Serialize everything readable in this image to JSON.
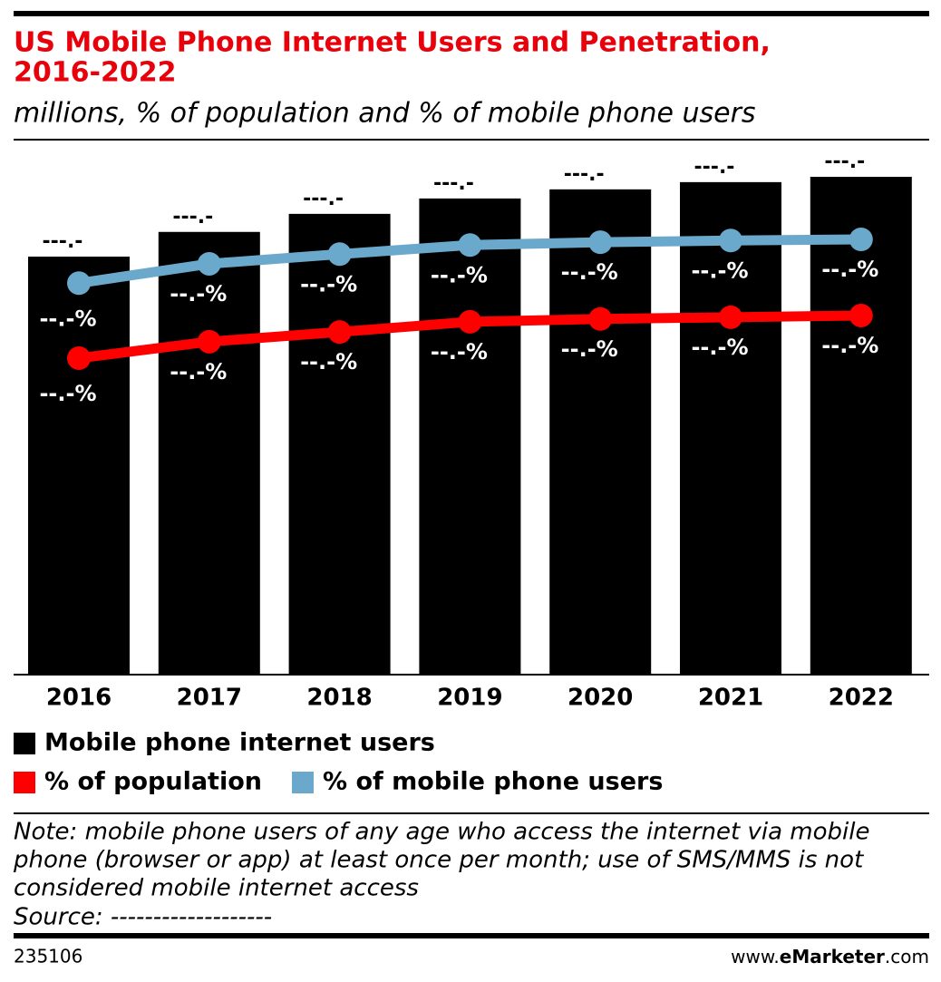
{
  "chart_data": {
    "type": "bar_line",
    "title_lines": [
      "US Mobile Phone Internet Users and Penetration,",
      "2016-2022"
    ],
    "subtitle": "millions, % of population and % of mobile phone users",
    "categories": [
      "2016",
      "2017",
      "2018",
      "2019",
      "2020",
      "2021",
      "2022"
    ],
    "series": [
      {
        "name": "Mobile phone internet users",
        "type": "bar",
        "color": "#000000",
        "values": [
          220.0,
          233.0,
          242.5,
          250.6,
          255.4,
          259.2,
          262.0
        ],
        "value_labels": [
          "---.-",
          "---.-",
          "---.-",
          "---.-",
          "---.-",
          "---.-",
          "---.-"
        ]
      },
      {
        "name": "% of population",
        "type": "line",
        "axis": "y2",
        "color": "#ff0000",
        "values": [
          68.6,
          71.5,
          73.2,
          75.0,
          75.5,
          75.8,
          76.1
        ],
        "value_labels": [
          "--.-%",
          "--.-%",
          "--.-%",
          "--.-%",
          "--.-%",
          "--.-%",
          "--.-%"
        ]
      },
      {
        "name": "% of mobile phone users",
        "type": "line",
        "axis": "y2",
        "color": "#6aa9cc",
        "values": [
          81.8,
          85.2,
          86.9,
          88.5,
          89.0,
          89.3,
          89.5
        ],
        "value_labels": [
          "--.-%",
          "--.-%",
          "--.-%",
          "--.-%",
          "--.-%",
          "--.-%",
          "--.-%"
        ]
      }
    ],
    "note_lines": [
      "Note: mobile phone users of any age who access the internet via mobile",
      "phone (browser or app) at least once per month; use of SMS/MMS is not",
      "considered mobile internet access"
    ],
    "source": "Source: -------------------",
    "chart_id": "235106",
    "site_prefix": "www.",
    "site_brand": "eMarketer",
    "site_suffix": ".com"
  }
}
